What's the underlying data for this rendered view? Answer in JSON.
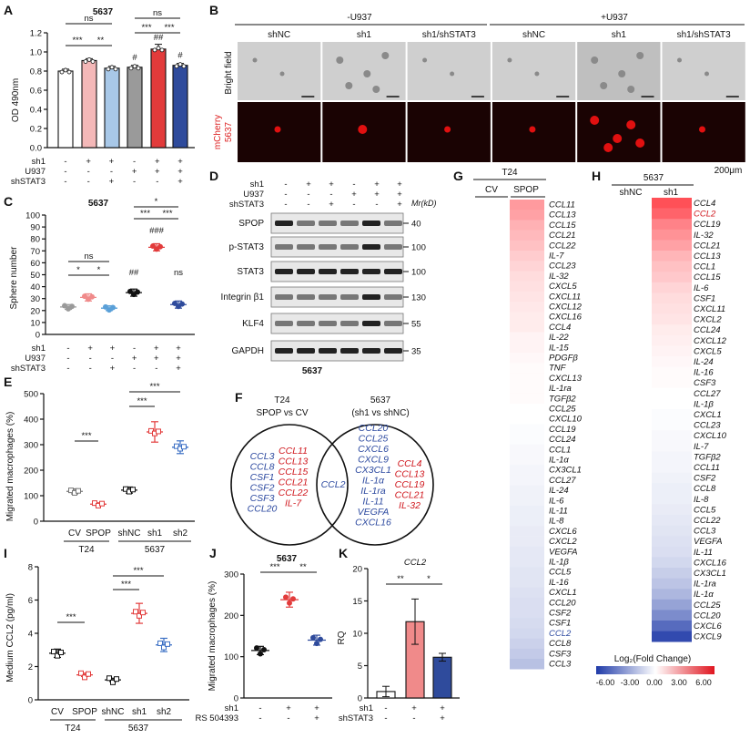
{
  "panel_letters": [
    "A",
    "B",
    "C",
    "D",
    "E",
    "F",
    "G",
    "H",
    "I",
    "J",
    "K"
  ],
  "panel_A": {
    "title": "5637",
    "ylabel": "OD 490nm",
    "yticks": [
      "0.0",
      "0.2",
      "0.4",
      "0.6",
      "0.8",
      "1.0",
      "1.2"
    ],
    "row_labels": [
      "sh1",
      "U937",
      "shSTAT3"
    ],
    "row_signs": [
      [
        "-",
        "+",
        "+",
        "-",
        "+",
        "+"
      ],
      [
        "-",
        "-",
        "-",
        "+",
        "+",
        "+"
      ],
      [
        "-",
        "-",
        "+",
        "-",
        "-",
        "+"
      ]
    ],
    "sig": [
      "ns",
      "***",
      "**",
      "ns",
      "***",
      "***",
      "#",
      "##",
      "#"
    ]
  },
  "panel_B": {
    "group_left": "-U937",
    "group_right": "+U937",
    "columns": [
      "shNC",
      "sh1",
      "sh1/shSTAT3",
      "shNC",
      "sh1",
      "sh1/shSTAT3"
    ],
    "row1_label": "Bright field",
    "row2_label_a": "mCherry",
    "row2_label_b": "5637",
    "scale_bar": "200μm"
  },
  "panel_C": {
    "title": "5637",
    "ylabel": "Sphere number",
    "yticks": [
      "0",
      "10",
      "20",
      "30",
      "40",
      "50",
      "60",
      "70",
      "80",
      "90",
      "100"
    ],
    "row_labels": [
      "sh1",
      "U937",
      "shSTAT3"
    ],
    "row_signs": [
      [
        "-",
        "+",
        "+",
        "-",
        "+",
        "+"
      ],
      [
        "-",
        "-",
        "-",
        "+",
        "+",
        "+"
      ],
      [
        "-",
        "-",
        "+",
        "-",
        "-",
        "+"
      ]
    ],
    "sig": [
      "ns",
      "*",
      "*",
      "*",
      "***",
      "***",
      "###",
      "##",
      "ns"
    ]
  },
  "panel_D": {
    "row_labels": [
      "sh1",
      "U937",
      "shSTAT3"
    ],
    "row_signs": [
      [
        "-",
        "+",
        "+",
        "-",
        "+",
        "+"
      ],
      [
        "-",
        "-",
        "-",
        "+",
        "+",
        "+"
      ],
      [
        "-",
        "-",
        "+",
        "-",
        "-",
        "+"
      ]
    ],
    "mr_label": "Mr(kD)",
    "bands": [
      {
        "name": "SPOP",
        "mw": "40"
      },
      {
        "name": "p-STAT3",
        "mw": "100"
      },
      {
        "name": "STAT3",
        "mw": "100"
      },
      {
        "name": "Integrin β1",
        "mw": "130"
      },
      {
        "name": "KLF4",
        "mw": "55"
      },
      {
        "name": "GAPDH",
        "mw": "35"
      }
    ],
    "cell_line": "5637"
  },
  "panel_E": {
    "ylabel": "Migrated macrophages (%)",
    "yticks": [
      "0",
      "100",
      "200",
      "300",
      "400",
      "500"
    ],
    "categories": [
      "CV",
      "SPOP",
      "shNC",
      "sh1",
      "sh2"
    ],
    "group_labels": [
      "T24",
      "5637"
    ],
    "sig": [
      "***",
      "***",
      "***"
    ]
  },
  "panel_F": {
    "left_title_a": "T24",
    "left_title_b": "SPOP vs CV",
    "right_title_a": "5637",
    "right_title_b": "(sh1 vs shNC)",
    "left_blue": [
      "CCL3",
      "CCL8",
      "CSF1",
      "CSF2",
      "CSF3",
      "CCL20"
    ],
    "left_red": [
      "CCL11",
      "CCL13",
      "CCL15",
      "CCL21",
      "CCL22",
      "IL-7"
    ],
    "center": "CCL2",
    "right_blue": [
      "CCL20",
      "CCL25",
      "CXCL6",
      "CXCL9",
      "CX3CL1",
      "IL-1α",
      "IL-1ra",
      "IL-11",
      "VEGFA",
      "CXCL16"
    ],
    "right_red": [
      "CCL4",
      "CCL13",
      "CCL19",
      "CCL21",
      "IL-32"
    ]
  },
  "panel_G": {
    "title": "T24",
    "columns": [
      "CV",
      "SPOP"
    ],
    "genes": [
      "CCL11",
      "CCL13",
      "CCL15",
      "CCL21",
      "CCL22",
      "IL-7",
      "CCL23",
      "IL-32",
      "CXCL5",
      "CXCL11",
      "CXCL12",
      "CXCL16",
      "CCL4",
      "IL-22",
      "IL-15",
      "PDGFβ",
      "TNF",
      "CXCL13",
      "IL-1ra",
      "TGFβ2",
      "CCL25",
      "CXCL10",
      "CCL19",
      "CCL24",
      "CCL1",
      "IL-1α",
      "CX3CL1",
      "CCL27",
      "IL-24",
      "IL-6",
      "IL-11",
      "IL-8",
      "CXCL6",
      "CXCL2",
      "VEGFA",
      "IL-1β",
      "CCL5",
      "IL-16",
      "CXCL1",
      "CCL20",
      "CSF2",
      "CSF1",
      "CCL2",
      "CCL8",
      "CSF3",
      "CCL3"
    ]
  },
  "panel_H": {
    "title": "5637",
    "columns": [
      "shNC",
      "sh1"
    ],
    "genes": [
      "CCL4",
      "CCL2",
      "CCL19",
      "IL-32",
      "CCL21",
      "CCL13",
      "CCL1",
      "CCL15",
      "IL-6",
      "CSF1",
      "CXCL11",
      "CXCL2",
      "CCL24",
      "CXCL12",
      "CXCL5",
      "IL-24",
      "IL-16",
      "CSF3",
      "CCL27",
      "IL-1β",
      "CXCL1",
      "CCL23",
      "CXCL10",
      "IL-7",
      "TGFβ2",
      "CCL11",
      "CSF2",
      "CCL8",
      "IL-8",
      "CCL5",
      "CCL22",
      "CCL3",
      "VEGFA",
      "IL-11",
      "CXCL16",
      "CX3CL1",
      "IL-1ra",
      "IL-1α",
      "CCL25",
      "CCL20",
      "CXCL6",
      "CXCL9"
    ],
    "legend_title": "Log₂(Fold Change)",
    "legend_ticks": [
      "-6.00",
      "-3.00",
      "0.00",
      "3.00",
      "6.00"
    ]
  },
  "panel_I": {
    "ylabel": "Medium CCL2 (pg/ml)",
    "yticks": [
      "0",
      "2",
      "4",
      "6",
      "8"
    ],
    "categories": [
      "CV",
      "SPOP",
      "shNC",
      "sh1",
      "sh2"
    ],
    "group_labels": [
      "T24",
      "5637"
    ],
    "sig": [
      "***",
      "***",
      "***"
    ]
  },
  "panel_J": {
    "title": "5637",
    "ylabel": "Migrated macrophages (%)",
    "yticks": [
      "0",
      "100",
      "200",
      "300"
    ],
    "row_labels": [
      "sh1",
      "RS 504393"
    ],
    "row_signs": [
      [
        "-",
        "+",
        "+"
      ],
      [
        "-",
        "-",
        "+"
      ]
    ],
    "sig": [
      "***",
      "**"
    ]
  },
  "panel_K": {
    "title": "CCL2",
    "ylabel": "RQ",
    "yticks": [
      "0",
      "5",
      "10",
      "15",
      "20"
    ],
    "row_labels": [
      "sh1",
      "shSTAT3"
    ],
    "row_signs": [
      [
        "-",
        "+",
        "+"
      ],
      [
        "-",
        "-",
        "+"
      ]
    ],
    "sig": [
      "**",
      "*"
    ]
  },
  "chart_data": [
    {
      "type": "bar",
      "panel": "A",
      "title": "5637",
      "ylabel": "OD 490nm",
      "ylim": [
        0,
        1.2
      ],
      "categories": [
        "-/-/-",
        "sh1",
        "sh1/shSTAT3",
        "U937",
        "sh1+U937",
        "sh1+U937+shSTAT3"
      ],
      "values": [
        0.8,
        0.91,
        0.83,
        0.84,
        1.03,
        0.86
      ],
      "errors": [
        0.02,
        0.02,
        0.02,
        0.02,
        0.05,
        0.02
      ],
      "colors": [
        "#ffffff",
        "#f4b8b8",
        "#a8c8e8",
        "#9a9a9a",
        "#e23b3b",
        "#2f4b9c"
      ]
    },
    {
      "type": "scatter",
      "panel": "C",
      "title": "5637",
      "ylabel": "Sphere number",
      "ylim": [
        0,
        100
      ],
      "categories": [
        "-/-/-",
        "sh1",
        "sh1/shSTAT3",
        "U937",
        "sh1+U937",
        "sh1+U937+shSTAT3"
      ],
      "values": [
        23,
        31,
        22,
        35,
        73,
        25
      ],
      "errors": [
        2,
        3,
        2,
        3,
        3,
        3
      ],
      "colors": [
        "#9a9a9a",
        "#f08a8a",
        "#5aa0d8",
        "#111111",
        "#e23b3b",
        "#2f4b9c"
      ]
    },
    {
      "type": "scatter",
      "panel": "E",
      "ylabel": "Migrated macrophages (%)",
      "ylim": [
        0,
        500
      ],
      "categories": [
        "CV",
        "SPOP",
        "shNC",
        "sh1",
        "sh2"
      ],
      "values": [
        117,
        67,
        122,
        350,
        290
      ],
      "errors": [
        10,
        5,
        12,
        40,
        25
      ],
      "colors": [
        "#777777",
        "#e23b3b",
        "#111111",
        "#e23b3b",
        "#3b6fc4"
      ]
    },
    {
      "type": "scatter",
      "panel": "I",
      "ylabel": "Medium CCL2 (pg/ml)",
      "ylim": [
        0,
        8
      ],
      "categories": [
        "CV",
        "SPOP",
        "shNC",
        "sh1",
        "sh2"
      ],
      "values": [
        2.8,
        1.5,
        1.2,
        5.2,
        3.3
      ],
      "errors": [
        0.25,
        0.1,
        0.1,
        0.6,
        0.4
      ],
      "colors": [
        "#111111",
        "#e23b3b",
        "#111111",
        "#e23b3b",
        "#3b6fc4"
      ]
    },
    {
      "type": "scatter",
      "panel": "J",
      "title": "5637",
      "ylabel": "Migrated macrophages (%)",
      "ylim": [
        0,
        300
      ],
      "categories": [
        "-/-",
        "sh1",
        "sh1+RS 504393"
      ],
      "values": [
        115,
        238,
        140
      ],
      "errors": [
        10,
        18,
        12
      ],
      "colors": [
        "#111111",
        "#e23b3b",
        "#2f4b9c"
      ]
    },
    {
      "type": "bar",
      "panel": "K",
      "title": "CCL2",
      "ylabel": "RQ",
      "ylim": [
        0,
        20
      ],
      "categories": [
        "-/-",
        "sh1",
        "sh1+shSTAT3"
      ],
      "values": [
        1.0,
        11.8,
        6.3
      ],
      "errors": [
        0.8,
        3.5,
        0.6
      ],
      "colors": [
        "#ffffff",
        "#f08a8a",
        "#2f4b9c"
      ]
    },
    {
      "type": "heatmap",
      "panel": "G",
      "title": "T24",
      "columns": [
        "CV",
        "SPOP"
      ],
      "scale": [
        -6,
        6
      ],
      "values": [
        [
          0,
          2.6
        ],
        [
          0,
          2.4
        ],
        [
          0,
          2.0
        ],
        [
          0,
          1.8
        ],
        [
          0,
          1.6
        ],
        [
          0,
          1.3
        ],
        [
          0,
          1.1
        ],
        [
          0,
          0.9
        ],
        [
          0,
          0.8
        ],
        [
          0,
          0.7
        ],
        [
          0,
          0.6
        ],
        [
          0,
          0.5
        ],
        [
          0,
          0.5
        ],
        [
          0,
          0.3
        ],
        [
          0,
          0.3
        ],
        [
          0,
          0.2
        ],
        [
          0,
          0.1
        ],
        [
          0,
          0.1
        ],
        [
          0,
          0.1
        ],
        [
          0,
          0.1
        ],
        [
          0,
          0
        ],
        [
          0,
          0
        ],
        [
          0,
          -0.1
        ],
        [
          0,
          -0.1
        ],
        [
          0,
          -0.2
        ],
        [
          0,
          -0.2
        ],
        [
          0,
          -0.3
        ],
        [
          0,
          -0.3
        ],
        [
          0,
          -0.4
        ],
        [
          0,
          -0.4
        ],
        [
          0,
          -0.5
        ],
        [
          0,
          -0.5
        ],
        [
          0,
          -0.6
        ],
        [
          0,
          -0.6
        ],
        [
          0,
          -0.7
        ],
        [
          0,
          -0.7
        ],
        [
          0,
          -0.8
        ],
        [
          0,
          -0.8
        ],
        [
          0,
          -0.9
        ],
        [
          0,
          -1.0
        ],
        [
          0,
          -1.0
        ],
        [
          0,
          -1.1
        ],
        [
          0,
          -1.2
        ],
        [
          0,
          -1.4
        ],
        [
          0,
          -1.6
        ],
        [
          0,
          -1.9
        ]
      ]
    },
    {
      "type": "heatmap",
      "panel": "H",
      "title": "5637",
      "columns": [
        "shNC",
        "sh1"
      ],
      "scale": [
        -6,
        6
      ],
      "values": [
        [
          0,
          4.5
        ],
        [
          0,
          4.0
        ],
        [
          0,
          3.2
        ],
        [
          0,
          2.8
        ],
        [
          0,
          2.4
        ],
        [
          0,
          1.9
        ],
        [
          0,
          1.6
        ],
        [
          0,
          1.4
        ],
        [
          0,
          1.1
        ],
        [
          0,
          0.9
        ],
        [
          0,
          0.8
        ],
        [
          0,
          0.7
        ],
        [
          0,
          0.5
        ],
        [
          0,
          0.4
        ],
        [
          0,
          0.3
        ],
        [
          0,
          0.2
        ],
        [
          0,
          0.1
        ],
        [
          0,
          0.1
        ],
        [
          0,
          0
        ],
        [
          0,
          0
        ],
        [
          0,
          -0.1
        ],
        [
          0,
          -0.1
        ],
        [
          0,
          -0.2
        ],
        [
          0,
          -0.2
        ],
        [
          0,
          -0.3
        ],
        [
          0,
          -0.3
        ],
        [
          0,
          -0.4
        ],
        [
          0,
          -0.5
        ],
        [
          0,
          -0.5
        ],
        [
          0,
          -0.6
        ],
        [
          0,
          -0.7
        ],
        [
          0,
          -0.8
        ],
        [
          0,
          -0.9
        ],
        [
          0,
          -1.0
        ],
        [
          0,
          -1.2
        ],
        [
          0,
          -1.5
        ],
        [
          0,
          -1.8
        ],
        [
          0,
          -2.2
        ],
        [
          0,
          -2.8
        ],
        [
          0,
          -3.5
        ],
        [
          0,
          -4.5
        ],
        [
          0,
          -5.5
        ]
      ]
    }
  ]
}
